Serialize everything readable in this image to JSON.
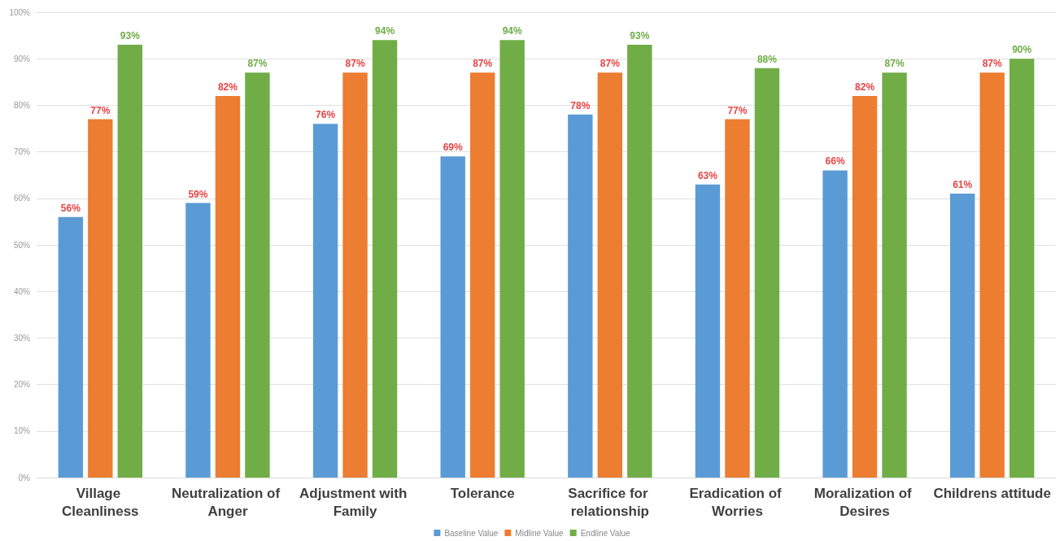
{
  "chart_data": {
    "type": "bar",
    "categories": [
      "Village Cleanliness",
      "Neutralization of Anger",
      "Adjustment with Family",
      "Tolerance",
      "Sacrifice for relationship",
      "Eradication of Worries",
      "Moralization of Desires",
      "Childrens attitude"
    ],
    "series": [
      {
        "name": "Baseline Value",
        "color": "#5b9bd5",
        "values": [
          56,
          59,
          76,
          69,
          78,
          63,
          66,
          61
        ],
        "value_labels": [
          "56%",
          "59%",
          "76%",
          "69%",
          "78%",
          "63%",
          "66%",
          "61%"
        ]
      },
      {
        "name": "Midline Value",
        "color": "#ed7d31",
        "values": [
          77,
          82,
          87,
          87,
          87,
          77,
          82,
          87
        ],
        "value_labels": [
          "77%",
          "82%",
          "87%",
          "87%",
          "87%",
          "77%",
          "82%",
          "87%"
        ]
      },
      {
        "name": "Endline Value",
        "color": "#70ad47",
        "values": [
          93,
          87,
          94,
          94,
          93,
          88,
          87,
          90
        ],
        "value_labels": [
          "93%",
          "87%",
          "94%",
          "94%",
          "93%",
          "88%",
          "87%",
          "90%"
        ]
      }
    ],
    "ylim": [
      0,
      100
    ],
    "yticks": [
      {
        "value": 0,
        "label": "0%"
      },
      {
        "value": 10,
        "label": "10%"
      },
      {
        "value": 20,
        "label": "20%"
      },
      {
        "value": 30,
        "label": "30%"
      },
      {
        "value": 40,
        "label": "40%"
      },
      {
        "value": 50,
        "label": "50%"
      },
      {
        "value": 60,
        "label": "60%"
      },
      {
        "value": 70,
        "label": "70%"
      },
      {
        "value": 80,
        "label": "80%"
      },
      {
        "value": 90,
        "label": "90%"
      },
      {
        "value": 100,
        "label": "100%"
      }
    ],
    "grid": "y",
    "legend": "bottom"
  }
}
